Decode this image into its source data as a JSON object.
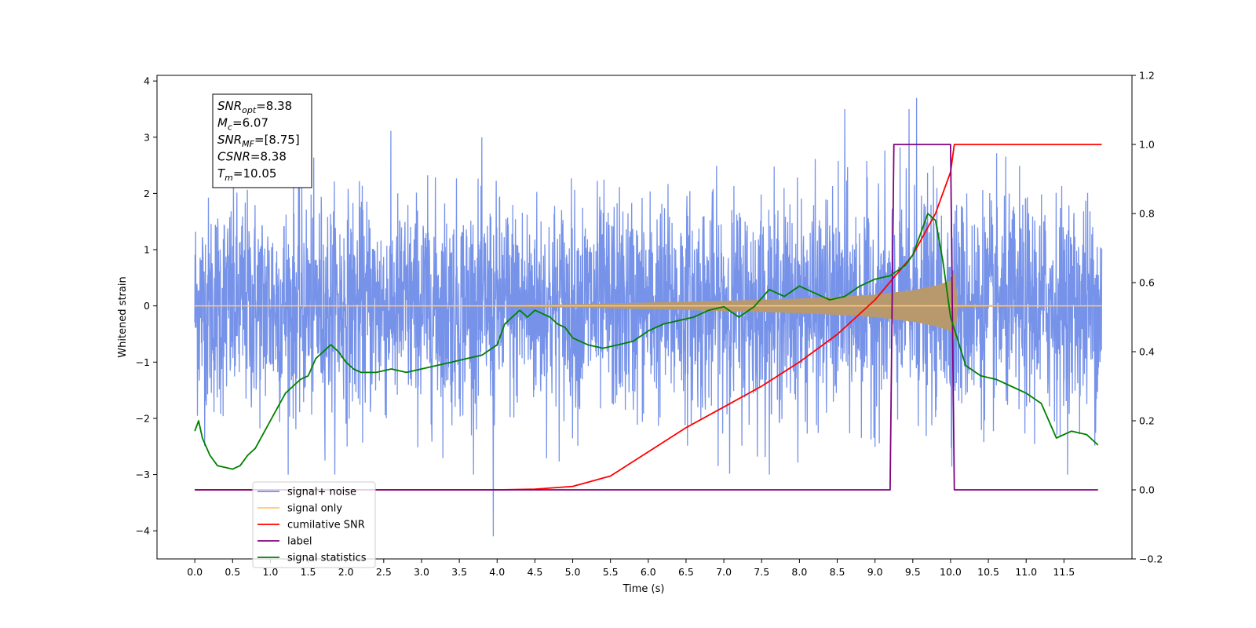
{
  "chart_data": {
    "type": "line",
    "xlabel": "Time (s)",
    "ylabel": "Whitened strain",
    "xlim": [
      -0.5,
      12.4
    ],
    "ylim": [
      -4.5,
      4.1
    ],
    "y2lim": [
      -0.2,
      1.2
    ],
    "x_ticks": [
      "0.0",
      "0.5",
      "1.0",
      "1.5",
      "2.0",
      "2.5",
      "3.0",
      "3.5",
      "4.0",
      "4.5",
      "5.0",
      "5.5",
      "6.0",
      "6.5",
      "7.0",
      "7.5",
      "8.0",
      "8.5",
      "9.0",
      "9.5",
      "10.0",
      "10.5",
      "11.0",
      "11.5"
    ],
    "y_ticks": [
      "4",
      "3",
      "2",
      "1",
      "0",
      "−1",
      "−2",
      "−3",
      "−4"
    ],
    "y2_ticks": [
      "1.2",
      "1.0",
      "0.8",
      "0.6",
      "0.4",
      "0.2",
      "0.0",
      "−0.2"
    ],
    "grid": false,
    "legend_position": "lower-left",
    "annotation": [
      {
        "base": "SNR",
        "sub": "opt",
        "value": "=8.38"
      },
      {
        "base": "M",
        "sub": "c",
        "value": "=6.07"
      },
      {
        "base": "SNR",
        "sub": "MF",
        "value": "=[8.75]"
      },
      {
        "base": "CSNR",
        "sub": "",
        "value": "=8.38"
      },
      {
        "base": "T",
        "sub": "m",
        "value": "=10.05"
      }
    ],
    "legend": [
      {
        "label": "signal+ noise",
        "color": "#6f8ce8"
      },
      {
        "label": "signal only",
        "color": "#ffc87a"
      },
      {
        "label": "cumilative SNR",
        "color": "#ff0000"
      },
      {
        "label": "label",
        "color": "#800080"
      },
      {
        "label": "signal statistics",
        "color": "#008000"
      }
    ],
    "series": [
      {
        "name": "signal+ noise",
        "axis": "left",
        "color": "#6f8ce8",
        "kind": "noise",
        "x_range": [
          0.0,
          12.0
        ],
        "sigma": 1.0,
        "notable_peaks": [
          [
            9.55,
            3.7
          ],
          [
            9.45,
            3.5
          ],
          [
            3.95,
            -4.1
          ],
          [
            8.6,
            3.5
          ]
        ]
      },
      {
        "name": "signal only",
        "axis": "left",
        "color": "#ffc87a",
        "fill": "#b8996e",
        "kind": "envelope",
        "x": [
          0.0,
          2.0,
          4.0,
          5.0,
          6.0,
          7.0,
          8.0,
          8.5,
          9.0,
          9.5,
          9.8,
          10.0,
          10.05,
          10.1,
          12.0
        ],
        "amplitude": [
          0.0,
          0.005,
          0.01,
          0.03,
          0.06,
          0.09,
          0.13,
          0.16,
          0.2,
          0.28,
          0.36,
          0.45,
          0.65,
          0.02,
          0.0
        ]
      },
      {
        "name": "cumilative SNR",
        "axis": "right",
        "color": "#ff0000",
        "x": [
          0.0,
          4.0,
          4.5,
          5.0,
          5.5,
          6.0,
          6.5,
          7.0,
          7.5,
          8.0,
          8.5,
          9.0,
          9.5,
          9.8,
          10.0,
          10.05,
          12.0
        ],
        "values": [
          0.0,
          0.0,
          0.002,
          0.01,
          0.04,
          0.11,
          0.18,
          0.24,
          0.3,
          0.37,
          0.45,
          0.55,
          0.68,
          0.8,
          0.92,
          1.0,
          1.0
        ]
      },
      {
        "name": "label",
        "axis": "right",
        "color": "#800080",
        "x": [
          0.0,
          9.2,
          9.25,
          10.0,
          10.05,
          11.95
        ],
        "values": [
          0.0,
          0.0,
          1.0,
          1.0,
          0.0,
          0.0
        ]
      },
      {
        "name": "signal statistics",
        "axis": "right",
        "color": "#008000",
        "x": [
          0.0,
          0.05,
          0.1,
          0.2,
          0.3,
          0.4,
          0.5,
          0.6,
          0.7,
          0.8,
          0.9,
          1.0,
          1.1,
          1.2,
          1.3,
          1.4,
          1.5,
          1.6,
          1.7,
          1.8,
          1.9,
          2.0,
          2.1,
          2.2,
          2.4,
          2.6,
          2.8,
          3.0,
          3.2,
          3.4,
          3.6,
          3.8,
          4.0,
          4.1,
          4.2,
          4.3,
          4.4,
          4.5,
          4.6,
          4.7,
          4.8,
          4.9,
          5.0,
          5.2,
          5.4,
          5.6,
          5.8,
          6.0,
          6.2,
          6.4,
          6.6,
          6.8,
          7.0,
          7.2,
          7.4,
          7.6,
          7.8,
          8.0,
          8.2,
          8.4,
          8.6,
          8.8,
          9.0,
          9.2,
          9.4,
          9.5,
          9.6,
          9.7,
          9.8,
          9.9,
          10.0,
          10.1,
          10.2,
          10.4,
          10.6,
          10.8,
          11.0,
          11.2,
          11.4,
          11.6,
          11.8,
          11.95
        ],
        "values": [
          0.17,
          0.2,
          0.15,
          0.1,
          0.07,
          0.065,
          0.06,
          0.07,
          0.1,
          0.12,
          0.16,
          0.2,
          0.24,
          0.28,
          0.3,
          0.32,
          0.33,
          0.38,
          0.4,
          0.42,
          0.4,
          0.37,
          0.35,
          0.34,
          0.34,
          0.35,
          0.34,
          0.35,
          0.36,
          0.37,
          0.38,
          0.39,
          0.42,
          0.48,
          0.5,
          0.52,
          0.5,
          0.52,
          0.51,
          0.5,
          0.48,
          0.47,
          0.44,
          0.42,
          0.41,
          0.42,
          0.43,
          0.46,
          0.48,
          0.49,
          0.5,
          0.52,
          0.53,
          0.5,
          0.53,
          0.58,
          0.56,
          0.59,
          0.57,
          0.55,
          0.56,
          0.59,
          0.61,
          0.62,
          0.65,
          0.68,
          0.74,
          0.8,
          0.78,
          0.66,
          0.5,
          0.43,
          0.36,
          0.33,
          0.32,
          0.3,
          0.28,
          0.25,
          0.15,
          0.17,
          0.16,
          0.13
        ]
      }
    ]
  }
}
